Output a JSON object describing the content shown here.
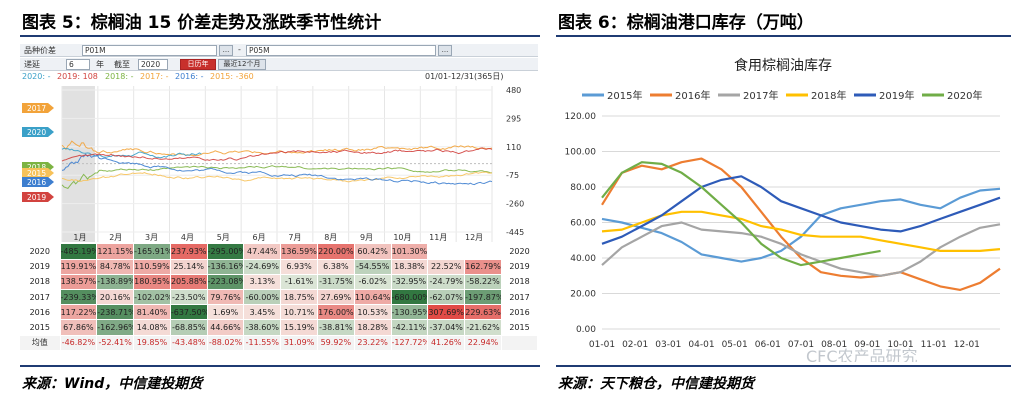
{
  "left": {
    "title": "图表 5：棕榈油 15 价差走势及涨跌季节性统计",
    "source": "来源：Wind，中信建投期货",
    "toolbar": {
      "variety_label": "品种价差",
      "contract1": "P01M",
      "contract2": "P05M",
      "ellipsis": "...",
      "minus": "-",
      "mode_label": "递延",
      "years_value": "6",
      "years_unit": "年",
      "end_label": "截至",
      "end_value": "2020",
      "calendar_button": "日历年",
      "recent_button": "最近12个月"
    },
    "legend": [
      {
        "text": "2020: -",
        "color": "#3aa0c8"
      },
      {
        "text": "2019: 108",
        "color": "#d2433f"
      },
      {
        "text": "2018: -",
        "color": "#7cb342"
      },
      {
        "text": "2017: -",
        "color": "#f2a33a"
      },
      {
        "text": "2016: -",
        "color": "#3d7ecf"
      },
      {
        "text": "2015: -360",
        "color": "#f2a33a"
      }
    ],
    "date_range": "01/01-12/31(365日)",
    "y_ticks": [
      "480",
      "295",
      "110",
      "-75",
      "-260",
      "-445"
    ],
    "month_labels": [
      "1月",
      "2月",
      "3月",
      "4月",
      "5月",
      "6月",
      "7月",
      "8月",
      "9月",
      "10月",
      "11月",
      "12月"
    ],
    "year_tags": [
      {
        "label": "2017",
        "color": "#f2a33a"
      },
      {
        "label": "2020",
        "color": "#3aa0c8"
      },
      {
        "label": "2018",
        "color": "#7cb342"
      },
      {
        "label": "2015",
        "color": "#f7c25a"
      },
      {
        "label": "2016",
        "color": "#3d7ecf"
      },
      {
        "label": "2019",
        "color": "#d2433f"
      }
    ],
    "table": {
      "avg_label": "均值",
      "rows": [
        {
          "year": "2020",
          "values": [
            "-485.19%",
            "121.15%",
            "-165.91%",
            "237.93%",
            "-295.00%",
            "47.44%",
            "136.59%",
            "220.00%",
            "60.42%",
            "101.30%",
            "",
            ""
          ]
        },
        {
          "year": "2019",
          "values": [
            "119.91%",
            "84.78%",
            "110.59%",
            "25.14%",
            "-136.16%",
            "-24.69%",
            "6.93%",
            "6.38%",
            "-54.55%",
            "18.38%",
            "22.52%",
            "162.79%"
          ]
        },
        {
          "year": "2018",
          "values": [
            "138.57%",
            "-138.89%",
            "180.95%",
            "205.88%",
            "-223.08%",
            "3.13%",
            "-1.61%",
            "-31.75%",
            "-6.02%",
            "-32.95%",
            "-24.79%",
            "-58.22%"
          ]
        },
        {
          "year": "2017",
          "values": [
            "-239.33%",
            "20.16%",
            "-102.02%",
            "-23.50%",
            "79.76%",
            "-60.00%",
            "18.75%",
            "27.69%",
            "110.64%",
            "-680.00%",
            "-62.07%",
            "-197.87%"
          ]
        },
        {
          "year": "2016",
          "values": [
            "117.22%",
            "-238.71%",
            "81.40%",
            "-637.50%",
            "1.69%",
            "3.45%",
            "10.71%",
            "176.00%",
            "10.53%",
            "-130.95%",
            "307.69%",
            "229.63%"
          ]
        },
        {
          "year": "2015",
          "values": [
            "67.86%",
            "-162.96%",
            "14.08%",
            "-68.85%",
            "44.66%",
            "-38.60%",
            "15.19%",
            "-38.81%",
            "18.28%",
            "-42.11%",
            "-37.04%",
            "-21.62%"
          ]
        }
      ],
      "avg_values": [
        "-46.82%",
        "-52.41%",
        "19.85%",
        "-43.48%",
        "-88.02%",
        "-11.55%",
        "31.09%",
        "59.92%",
        "23.22%",
        "-127.72%",
        "41.26%",
        "22.94%"
      ]
    }
  },
  "right": {
    "title": "图表 6：棕榈油港口库存（万吨）",
    "source": "来源：天下粮仓，中信建投期货",
    "watermark": "CFC农产品研究",
    "chart_data": {
      "type": "line",
      "title": "食用棕榈油库存",
      "xlabel": "",
      "ylabel": "",
      "ylim": [
        0,
        120
      ],
      "y_ticks": [
        "120.00",
        "100.00",
        "80.00",
        "60.00",
        "40.00",
        "20.00",
        "0.00"
      ],
      "x_ticks": [
        "01-01",
        "02-01",
        "03-01",
        "04-01",
        "05-01",
        "06-01",
        "07-01",
        "08-01",
        "09-01",
        "10-01",
        "11-01",
        "12-01"
      ],
      "series": [
        {
          "name": "2015年",
          "color": "#5b9bd5",
          "values": [
            62,
            60,
            57,
            54,
            49,
            42,
            40,
            38,
            40,
            44,
            52,
            64,
            68,
            70,
            72,
            73,
            70,
            68,
            74,
            78,
            79
          ]
        },
        {
          "name": "2016年",
          "color": "#ed7d31",
          "values": [
            70,
            88,
            92,
            90,
            94,
            96,
            90,
            80,
            66,
            52,
            40,
            32,
            30,
            29,
            30,
            32,
            28,
            24,
            22,
            26,
            34
          ]
        },
        {
          "name": "2017年",
          "color": "#a5a5a5",
          "values": [
            36,
            46,
            52,
            58,
            60,
            56,
            55,
            54,
            52,
            48,
            42,
            38,
            34,
            32,
            30,
            32,
            38,
            46,
            52,
            57,
            59
          ]
        },
        {
          "name": "2018年",
          "color": "#ffc000",
          "values": [
            55,
            56,
            60,
            64,
            66,
            66,
            64,
            62,
            58,
            56,
            53,
            52,
            52,
            52,
            50,
            48,
            46,
            44,
            44,
            44,
            45
          ]
        },
        {
          "name": "2019年",
          "color": "#2e5bb8",
          "values": [
            48,
            52,
            58,
            64,
            72,
            80,
            84,
            86,
            80,
            72,
            68,
            64,
            60,
            58,
            56,
            55,
            58,
            62,
            66,
            70,
            74
          ]
        },
        {
          "name": "2020年",
          "color": "#70ad47",
          "values": [
            74,
            88,
            94,
            93,
            88,
            80,
            70,
            60,
            48,
            40,
            36,
            38,
            40,
            42,
            44,
            null,
            null,
            null,
            null,
            null,
            null
          ]
        }
      ]
    }
  }
}
